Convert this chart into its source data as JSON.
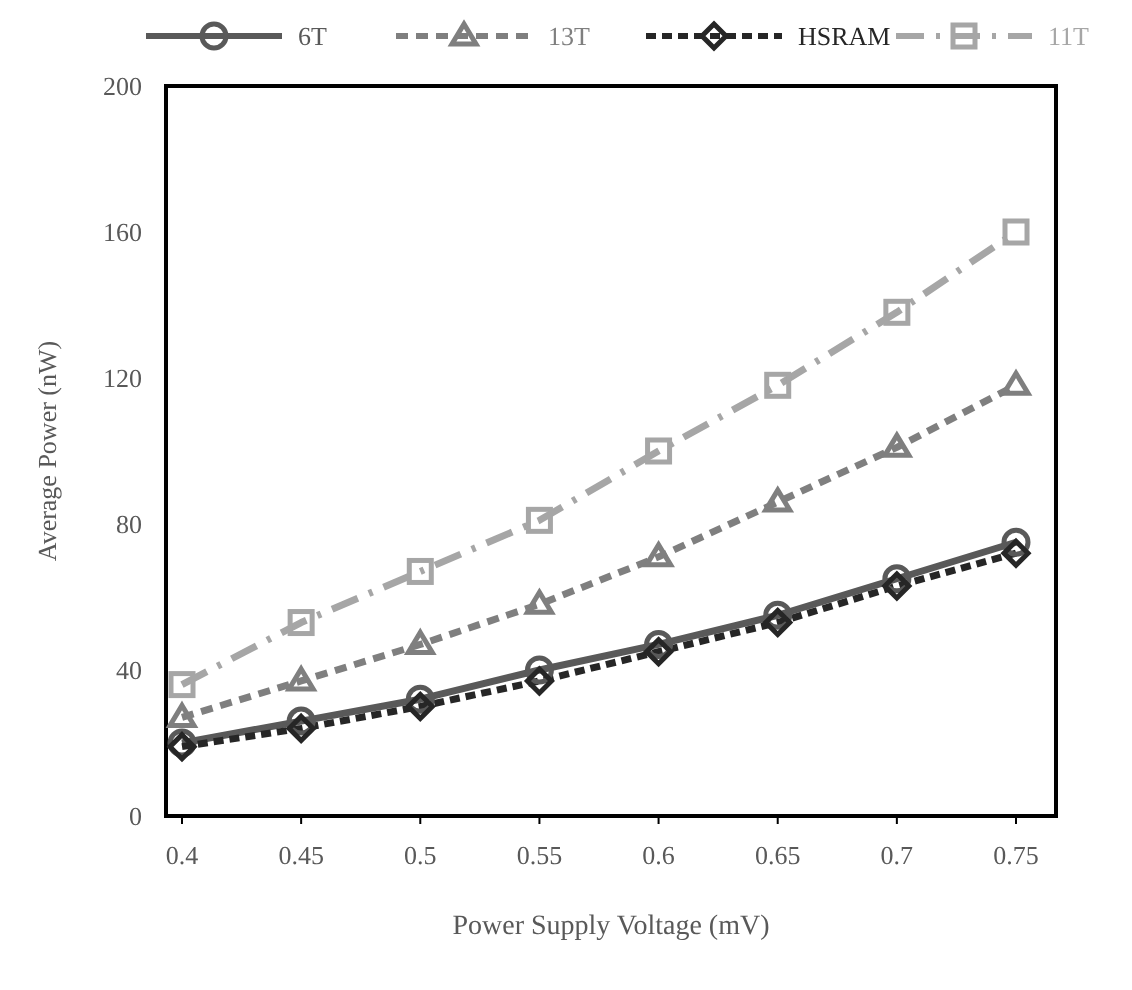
{
  "chart_data": {
    "type": "line",
    "xlabel": "Power Supply Voltage (mV)",
    "ylabel": "Average Power (nW)",
    "categories": [
      "0.4",
      "0.45",
      "0.5",
      "0.55",
      "0.6",
      "0.65",
      "0.7",
      "0.75"
    ],
    "ylim": [
      0,
      200
    ],
    "yticks": [
      0,
      40,
      80,
      120,
      160,
      200
    ],
    "grid": false,
    "legend": "top",
    "series": [
      {
        "name": "6T",
        "color": "#595959",
        "marker": "circle",
        "line_style": "solid",
        "values": [
          20,
          26,
          32,
          40,
          47,
          55,
          65,
          75
        ]
      },
      {
        "name": "13T",
        "color": "#7f7f7f",
        "marker": "triangle",
        "line_style": "dashed",
        "values": [
          27,
          37,
          47,
          58,
          71,
          86,
          101,
          118
        ]
      },
      {
        "name": "HSRAM",
        "color": "#262626",
        "marker": "diamond",
        "line_style": "dashed",
        "values": [
          19,
          24,
          30,
          37,
          45,
          53,
          63,
          72
        ]
      },
      {
        "name": "11T",
        "color": "#a6a6a6",
        "marker": "square",
        "line_style": "dashed",
        "values": [
          36,
          53,
          67,
          81,
          100,
          118,
          138,
          160
        ]
      }
    ]
  }
}
